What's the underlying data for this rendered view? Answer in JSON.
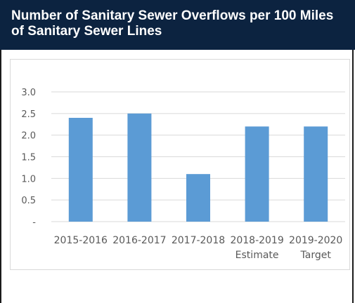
{
  "header": {
    "title": "Number of Sanitary Sewer Overflows per 100 Miles of Sanitary Sewer Lines"
  },
  "colors": {
    "header_bg": "#0c2340",
    "bar": "#5b9bd5",
    "grid": "#d9d9d9",
    "axis_text": "#595959"
  },
  "chart_data": {
    "type": "bar",
    "categories": [
      [
        "2015-2016"
      ],
      [
        "2016-2017"
      ],
      [
        "2017-2018"
      ],
      [
        "2018-2019",
        "Estimate"
      ],
      [
        "2019-2020",
        "Target"
      ]
    ],
    "values": [
      2.4,
      2.5,
      1.1,
      2.2,
      2.2
    ],
    "y_ticks": [
      "-",
      "0.5",
      "1.0",
      "1.5",
      "2.0",
      "2.5",
      "3.0"
    ],
    "ylim": [
      0,
      3.0
    ],
    "grid": true,
    "legend": "none"
  }
}
